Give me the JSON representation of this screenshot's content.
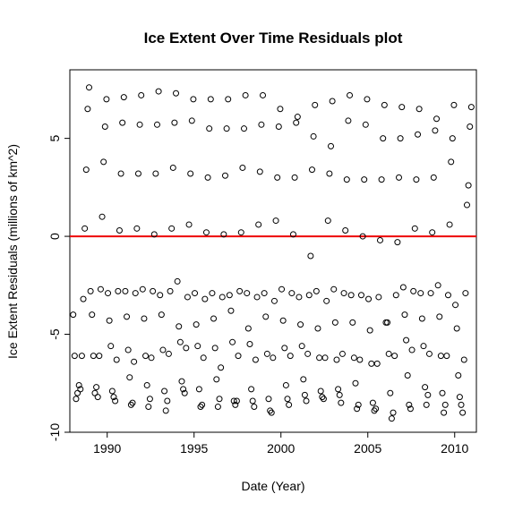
{
  "chart_data": {
    "type": "scatter",
    "title": "Ice Extent Over Time Residuals plot",
    "xlabel": "Date (Year)",
    "ylabel": "Ice Extent Residuals (millions of km^2)",
    "xlim": [
      1987.85,
      2011.25
    ],
    "ylim": [
      -10.0,
      8.5
    ],
    "x_ticks": [
      1990,
      1995,
      2000,
      2005,
      2010
    ],
    "x_tick_labels": [
      "1990",
      "1995",
      "2000",
      "2005",
      "2010"
    ],
    "y_ticks": [
      -10,
      -5,
      0,
      5
    ],
    "y_tick_labels": [
      "-10",
      "-5",
      "0",
      "5"
    ],
    "grid": false,
    "reference_line": {
      "y": 0,
      "color": "#ee0000"
    },
    "point_color": "#000000",
    "annual_cycle": [
      {
        "month": 1,
        "values": [
          -4.0,
          -2.8,
          -2.9,
          -2.8,
          -2.7,
          -3.0,
          -2.3,
          -2.9,
          -2.9,
          -3.0,
          -2.9,
          -2.9,
          -2.7,
          -3.1,
          -2.8,
          -2.7,
          -3.0,
          -3.2,
          -4.4,
          -2.6,
          -2.9,
          -2.5,
          -3.5
        ]
      },
      {
        "month": 2,
        "values": [
          -6.1,
          -4.0,
          -4.3,
          -4.1,
          -4.2,
          -4.0,
          -4.6,
          -4.5,
          -4.2,
          -3.8,
          -4.7,
          -4.1,
          -4.3,
          -4.5,
          -4.7,
          -4.4,
          -4.4,
          -4.8,
          -4.4,
          -4.0,
          -4.2,
          -4.1,
          -4.7
        ]
      },
      {
        "month": 3,
        "values": [
          -8.3,
          -6.1,
          -5.6,
          -5.8,
          -6.1,
          -5.8,
          -5.4,
          -5.6,
          -5.7,
          -5.4,
          -5.5,
          -6.0,
          -5.7,
          -5.6,
          -6.2,
          -6.3,
          -6.2,
          -6.5,
          -6.0,
          -5.3,
          -5.6,
          -6.1,
          -7.1
        ]
      },
      {
        "month": 4,
        "values": [
          -8.0,
          -8.0,
          -7.9,
          -7.2,
          -7.6,
          -7.9,
          -7.4,
          -7.8,
          -7.3,
          -8.4,
          -7.8,
          -8.3,
          -7.6,
          -7.3,
          -7.9,
          -7.8,
          -7.5,
          -8.5,
          -8.0,
          -7.1,
          -7.7,
          -8.0,
          -8.2
        ]
      },
      {
        "month": 5,
        "values": [
          -7.6,
          -7.7,
          -8.2,
          -8.6,
          -8.7,
          -8.9,
          -7.8,
          -8.7,
          -8.7,
          -8.6,
          -8.4,
          -8.9,
          -8.3,
          -8.1,
          -8.2,
          -8.1,
          -8.8,
          -8.9,
          -9.3,
          -8.6,
          -8.6,
          -9.0,
          -8.6
        ]
      },
      {
        "month": 6,
        "values": [
          -7.8,
          -8.2,
          -8.4,
          -8.5,
          -8.3,
          -8.4,
          -8.0,
          -8.6,
          -8.3,
          -8.4,
          -8.7,
          -9.0,
          -8.6,
          -8.4,
          -8.3,
          -8.5,
          -8.6,
          -8.8,
          -9.0,
          -8.8,
          -8.1,
          -8.6,
          -9.0
        ]
      },
      {
        "month": 7,
        "values": [
          -6.1,
          -6.1,
          -6.3,
          -6.4,
          -6.2,
          -6.0,
          -5.7,
          -6.2,
          -6.7,
          -6.1,
          -6.3,
          -6.2,
          -6.1,
          -6.0,
          -6.2,
          -6.0,
          -6.3,
          -6.5,
          -6.1,
          -5.8,
          -6.0,
          -6.1,
          -6.3
        ]
      },
      {
        "month": 8,
        "values": [
          -3.2,
          -2.7,
          -2.8,
          -2.9,
          -2.8,
          -2.8,
          -3.1,
          -3.2,
          -3.1,
          -2.8,
          -3.1,
          -3.3,
          -2.9,
          -3.0,
          -3.3,
          -2.9,
          -3.0,
          -3.1,
          -3.0,
          -2.8,
          -2.9,
          -3.0,
          -2.9
        ]
      },
      {
        "month": 9,
        "values": [
          0.4,
          1.0,
          0.3,
          0.4,
          0.1,
          0.4,
          0.6,
          0.2,
          0.1,
          0.2,
          0.6,
          0.8,
          0.1,
          -1.0,
          0.8,
          0.3,
          0.0,
          -0.2,
          -0.3,
          0.4,
          0.2,
          0.6,
          1.6
        ]
      },
      {
        "month": 10,
        "values": [
          3.4,
          3.8,
          3.2,
          3.2,
          3.2,
          3.5,
          3.2,
          3.0,
          3.1,
          3.5,
          3.3,
          3.0,
          3.0,
          3.4,
          3.2,
          2.9,
          2.9,
          2.9,
          3.0,
          2.9,
          3.0,
          3.8,
          2.6
        ]
      },
      {
        "month": 11,
        "values": [
          6.5,
          5.6,
          5.8,
          5.7,
          5.7,
          5.8,
          5.9,
          5.5,
          5.5,
          5.5,
          5.7,
          5.6,
          5.8,
          5.1,
          4.6,
          5.9,
          5.7,
          5.0,
          5.0,
          5.2,
          5.4,
          5.0,
          5.6
        ]
      },
      {
        "month": 12,
        "values": [
          7.6,
          7.0,
          7.1,
          7.2,
          7.4,
          7.3,
          7.0,
          7.0,
          7.0,
          7.2,
          7.2,
          6.5,
          6.1,
          6.7,
          6.9,
          7.2,
          7.0,
          6.7,
          6.6,
          6.5,
          6.0,
          6.7,
          6.6
        ]
      }
    ]
  }
}
